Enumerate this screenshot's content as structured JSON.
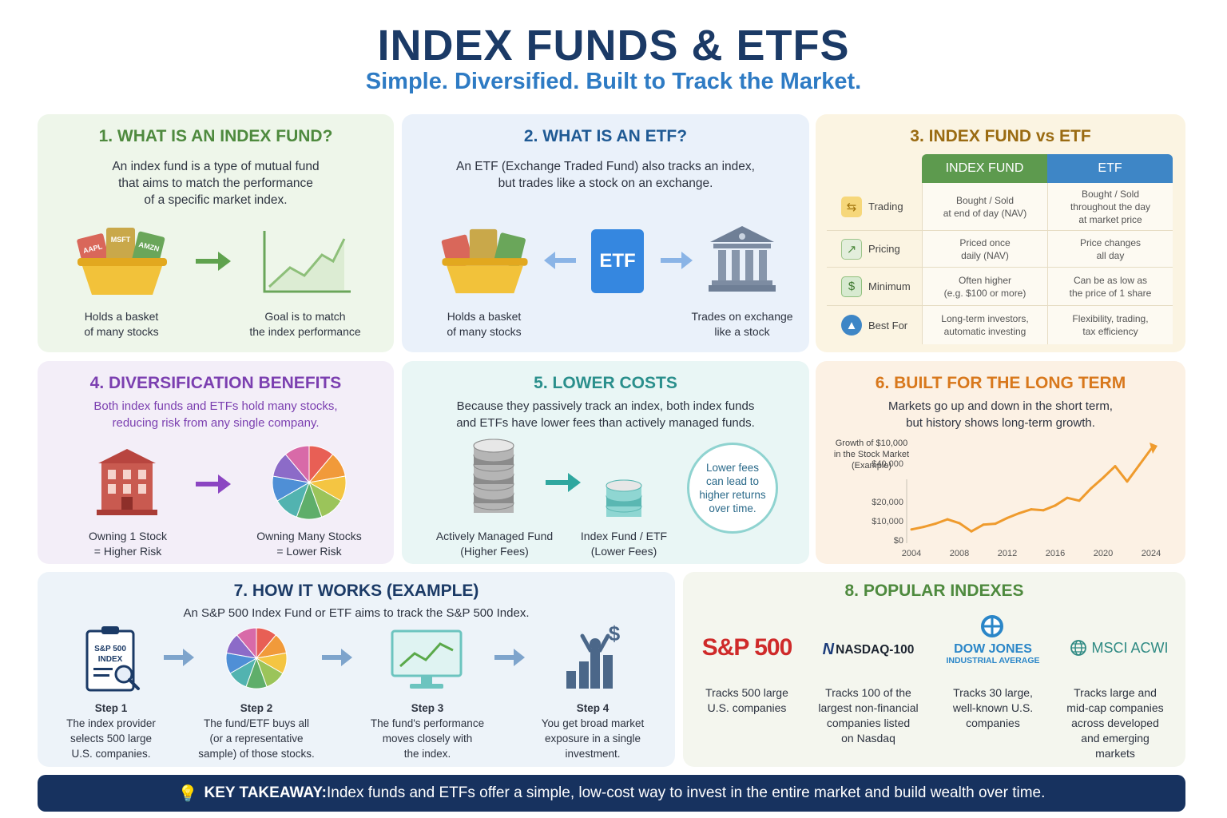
{
  "header": {
    "title": "INDEX FUNDS & ETFS",
    "subtitle": "Simple. Diversified. Built to Track the Market."
  },
  "p1": {
    "title": "1. WHAT IS AN INDEX FUND?",
    "desc": [
      "An index fund is a type of mutual fund",
      "that aims to match the performance",
      "of a specific market index."
    ],
    "basket_cards": [
      "AAPL",
      "MSFT",
      "AMZN"
    ],
    "cap_left": [
      "Holds a basket",
      "of many stocks"
    ],
    "cap_right": [
      "Goal is to match",
      "the index performance"
    ]
  },
  "p2": {
    "title": "2. WHAT IS AN ETF?",
    "desc": [
      "An ETF (Exchange Traded Fund) also tracks an index,",
      "but trades like a stock on an exchange."
    ],
    "etf_label": "ETF",
    "cap_left": [
      "Holds a basket",
      "of many stocks"
    ],
    "cap_right": [
      "Trades on exchange",
      "like a stock"
    ]
  },
  "p3": {
    "title": "3. INDEX FUND vs ETF",
    "col_index": "INDEX FUND",
    "col_etf": "ETF",
    "rows": [
      {
        "label": "Trading",
        "icon": "exchange-icon",
        "index": [
          "Bought / Sold",
          "at end of day (NAV)"
        ],
        "etf": [
          "Bought / Sold",
          "throughout the day",
          "at market price"
        ]
      },
      {
        "label": "Pricing",
        "icon": "chart-icon",
        "index": [
          "Priced once",
          "daily (NAV)"
        ],
        "etf": [
          "Price changes",
          "all day"
        ]
      },
      {
        "label": "Minimum",
        "icon": "dollar-icon",
        "index": [
          "Often higher",
          "(e.g. $100 or more)"
        ],
        "etf": [
          "Can be as low as",
          "the price of 1 share"
        ]
      },
      {
        "label": "Best For",
        "icon": "rocket-icon",
        "index": [
          "Long-term investors,",
          "automatic investing"
        ],
        "etf": [
          "Flexibility, trading,",
          "tax efficiency"
        ]
      }
    ]
  },
  "p4": {
    "title": "4. DIVERSIFICATION BENEFITS",
    "desc": [
      "Both index funds and ETFs hold many stocks,",
      "reducing risk from any single company."
    ],
    "cap_left": [
      "Owning 1 Stock",
      "= Higher Risk"
    ],
    "cap_right": [
      "Owning Many Stocks",
      "= Lower Risk"
    ]
  },
  "p5": {
    "title": "5. LOWER COSTS",
    "desc": [
      "Because they passively track an index, both index funds",
      "and ETFs have lower fees than actively managed funds."
    ],
    "bubble": [
      "Lower fees",
      "can lead to",
      "higher returns",
      "over time."
    ],
    "cap_left": [
      "Actively Managed Fund",
      "(Higher Fees)"
    ],
    "cap_right": [
      "Index Fund / ETF",
      "(Lower Fees)"
    ]
  },
  "p6": {
    "title": "6. BUILT FOR THE LONG TERM",
    "desc": [
      "Markets go up and down in the short term,",
      "but history shows long-term growth."
    ]
  },
  "chart_data": {
    "type": "line",
    "title": [
      "Growth of $10,000",
      "in the Stock Market",
      "(Example)"
    ],
    "x": [
      2004,
      2005,
      2006,
      2007,
      2008,
      2009,
      2010,
      2011,
      2012,
      2013,
      2014,
      2015,
      2016,
      2017,
      2018,
      2019,
      2020,
      2021,
      2022,
      2023,
      2024
    ],
    "y": [
      5500,
      6800,
      8500,
      10800,
      8800,
      4500,
      8000,
      8500,
      11500,
      14000,
      16000,
      15500,
      18000,
      22000,
      20500,
      27000,
      32500,
      38500,
      30500,
      39000,
      47500
    ],
    "xticks": [
      "2004",
      "2008",
      "2012",
      "2016",
      "2020",
      "2024"
    ],
    "yticks": [
      "$40,000",
      "$20,000",
      "$10,000",
      "$0"
    ],
    "ytick_values": [
      40000,
      20000,
      10000,
      0
    ],
    "grid": false,
    "color": "#ef9b2d"
  },
  "p7": {
    "title": "7. HOW IT WORKS (EXAMPLE)",
    "desc": "An S&P 500 Index Fund or ETF aims to track the S&P 500 Index.",
    "clipboard_label": [
      "S&P 500",
      "INDEX"
    ],
    "steps": [
      {
        "name": "Step 1",
        "text": [
          "The index provider",
          "selects 500 large",
          "U.S. companies."
        ]
      },
      {
        "name": "Step 2",
        "text": [
          "The fund/ETF buys all",
          "(or a representative",
          "sample) of those stocks."
        ]
      },
      {
        "name": "Step 3",
        "text": [
          "The fund's performance",
          "moves closely with",
          "the index."
        ]
      },
      {
        "name": "Step 4",
        "text": [
          "You get broad market",
          "exposure in a single",
          "investment."
        ]
      }
    ]
  },
  "p8": {
    "title": "8. POPULAR INDEXES",
    "indexes": [
      {
        "logo": "S&P 500",
        "logo2": "",
        "text": [
          "Tracks 500 large",
          "U.S. companies"
        ]
      },
      {
        "logo": "NASDAQ-100",
        "logo2": "",
        "text": [
          "Tracks 100 of the",
          "largest non-financial",
          "companies listed",
          "on Nasdaq"
        ]
      },
      {
        "logo": "DOW JONES",
        "logo2": "INDUSTRIAL AVERAGE",
        "text": [
          "Tracks 30 large,",
          "well-known U.S.",
          "companies"
        ]
      },
      {
        "logo": "MSCI ACWI",
        "logo2": "",
        "text": [
          "Tracks large and",
          "mid-cap companies",
          "across developed",
          "and emerging",
          "markets"
        ]
      }
    ]
  },
  "footer": {
    "label": "KEY TAKEAWAY:",
    "text": " Index funds and ETFs offer a simple, low-cost way to invest in the entire market and build wealth over time."
  },
  "colors": {
    "title": "#1b3a66",
    "subtitle": "#2e7bc4",
    "green": "#4e8a3e",
    "blue": "#1f5a94",
    "gold": "#9a6b12",
    "purple": "#7b3fb0",
    "teal": "#2a8f8c",
    "orange": "#d8781c"
  }
}
